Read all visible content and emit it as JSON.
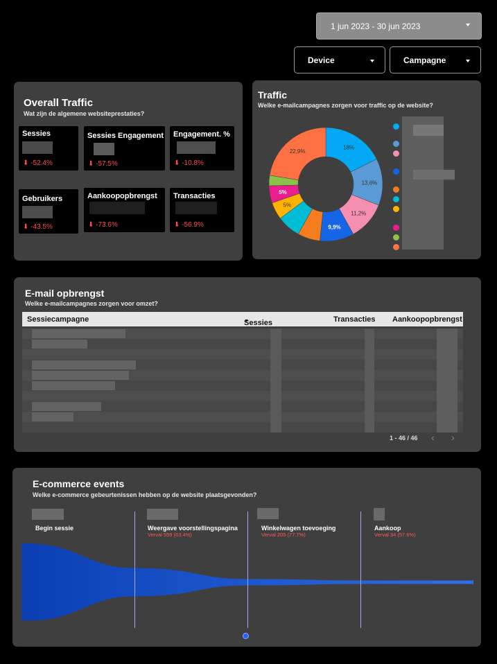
{
  "filters": {
    "date_range": "1 jun 2023 - 30 jun 2023",
    "device_label": "Device",
    "campaign_label": "Campagne"
  },
  "overall": {
    "title": "Overall Traffic",
    "subtitle": "Wat zijn de algemene websiteprestaties?",
    "kpis": [
      {
        "label": "Sessies",
        "delta": "-52.4%"
      },
      {
        "label": "Sessies Engagement",
        "delta": "-57.5%"
      },
      {
        "label": "Engagement. %",
        "delta": "-10.8%"
      },
      {
        "label": "Gebruikers",
        "delta": "-43.5%"
      },
      {
        "label": "Aankoopopbrengst",
        "delta": "-73.6%"
      },
      {
        "label": "Transacties",
        "delta": "-56.9%"
      }
    ],
    "down_arrow": "arrow-down-icon"
  },
  "traffic": {
    "title": "Traffic",
    "subtitle": "Welke e-mailcampagnes zorgen voor traffic op de website?",
    "slice_labels": [
      "18%",
      "13,6%",
      "11,2%",
      "9,9%",
      "5%",
      "5%",
      "22,9%"
    ],
    "legend_colors": [
      "#03a9f4",
      "#5b9bd5",
      "#f48fb1",
      "#1565e6",
      "#f57c1f",
      "#00bcd4",
      "#ffb300",
      "#e91e8c",
      "#8bc34a",
      "#ff7043"
    ]
  },
  "chart_data": {
    "type": "pie",
    "values": [
      18,
      13.6,
      11.2,
      9.9,
      6.5,
      6.9,
      5,
      5,
      3,
      22.9
    ],
    "colors": [
      "#03a9f4",
      "#5b9bd5",
      "#f48fb1",
      "#1565e6",
      "#f57c1f",
      "#00bcd4",
      "#ffb300",
      "#e91e8c",
      "#8bc34a",
      "#ff7043"
    ]
  },
  "email": {
    "title": "E-mail opbrengst",
    "subtitle": "Welke e-mailcampagnes zorgen voor omzet?",
    "columns": [
      "Sessiecampagne",
      "Sessies",
      "Transacties",
      "Aankoopopbrengst"
    ],
    "pagination": "1 - 46 / 46"
  },
  "ecom": {
    "title": "E-commerce events",
    "subtitle": "Welke e-commerce gebeurtenissen hebben op de website plaatsgevonden?",
    "steps": [
      {
        "name": "Begin sessie",
        "drop": ""
      },
      {
        "name": "Weergave voorstellingspagina",
        "drop": "Verval 559 (63.4%)"
      },
      {
        "name": "Winkelwagen toevoeging",
        "drop": "Verval 205 (77.7%)"
      },
      {
        "name": "Aankoop",
        "drop": "Verval 34 (57.6%)"
      }
    ],
    "funnel_levels": [
      1,
      0.366,
      0.082,
      0.035
    ]
  }
}
